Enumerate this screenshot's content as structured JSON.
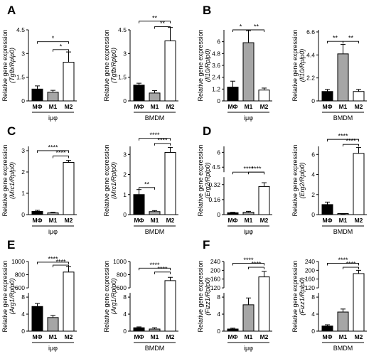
{
  "figure": {
    "width": 550,
    "height": 508
  },
  "colors": {
    "MΦ": "#000000",
    "M1": "#a6a6a6",
    "M2": "#ffffff",
    "stroke": "#000000"
  },
  "chart_data": [
    {
      "panel": "A",
      "type": "bar",
      "categories": [
        "MΦ",
        "M1",
        "M2"
      ],
      "group_label": "iμφ",
      "ylabel_prefix": "Relative gene expression",
      "ylabel_gene": "(Tgfb/Rplp0)",
      "ylim": [
        0,
        4.5
      ],
      "yticks": [
        0,
        1.5,
        3.0,
        4.5
      ],
      "values": [
        0.75,
        0.55,
        2.45
      ],
      "errors": [
        0.2,
        0.12,
        0.65
      ],
      "sig": [
        {
          "from": 0,
          "to": 2,
          "label": "*",
          "y": 3.75
        },
        {
          "from": 1,
          "to": 2,
          "label": "*",
          "y": 3.25
        }
      ]
    },
    {
      "panel": "",
      "type": "bar",
      "categories": [
        "MΦ",
        "M1",
        "M2"
      ],
      "group_label": "BMDM",
      "ylabel_prefix": "Relative gene expression",
      "ylabel_gene": "(Tgfb/Rplp0)",
      "ylim": [
        0,
        4.5
      ],
      "yticks": [
        0,
        1.5,
        3.0,
        4.5
      ],
      "values": [
        1.0,
        0.5,
        3.8
      ],
      "errors": [
        0.12,
        0.15,
        0.85
      ],
      "sig": [
        {
          "from": 0,
          "to": 2,
          "label": "**",
          "y": 5.05
        },
        {
          "from": 1,
          "to": 2,
          "label": "**",
          "y": 4.7
        }
      ]
    },
    {
      "panel": "B",
      "type": "bar",
      "categories": [
        "MΦ",
        "M1",
        "M2"
      ],
      "group_label": "iμφ",
      "ylabel_prefix": "Relative gene expression",
      "ylabel_gene": "(Il10/Rplp0)",
      "ylim": [
        0,
        7.2
      ],
      "yticks": [
        0,
        1.2,
        2.4,
        3.6,
        4.8,
        6.0
      ],
      "values": [
        1.4,
        5.9,
        1.1
      ],
      "errors": [
        0.6,
        1.2,
        0.2
      ],
      "sig": [
        {
          "from": 0,
          "to": 1,
          "label": "*",
          "y": 7.2
        },
        {
          "from": 1,
          "to": 2,
          "label": "**",
          "y": 7.2
        }
      ]
    },
    {
      "panel": "",
      "type": "bar",
      "categories": [
        "MΦ",
        "M1",
        "M2"
      ],
      "group_label": "BMDM",
      "ylabel_prefix": "Relative gene expression",
      "ylabel_gene": "(Il10/Rplp0)",
      "ylim": [
        0,
        6.8
      ],
      "yticks": [
        0,
        2.2,
        4.4,
        6.6
      ],
      "values": [
        0.9,
        4.5,
        0.9
      ],
      "errors": [
        0.2,
        0.9,
        0.2
      ],
      "sig": [
        {
          "from": 0,
          "to": 1,
          "label": "**",
          "y": 5.7
        },
        {
          "from": 1,
          "to": 2,
          "label": "**",
          "y": 5.7
        }
      ]
    },
    {
      "panel": "C",
      "type": "bar",
      "categories": [
        "MΦ",
        "M1",
        "M2"
      ],
      "group_label": "iμφ",
      "ylabel_prefix": "Relative gene expression",
      "ylabel_gene": "(Mrc1/Rplp0)",
      "ylim": [
        0,
        3.2
      ],
      "yticks": [
        0,
        1,
        2,
        3
      ],
      "values": [
        0.15,
        0.08,
        2.45
      ],
      "errors": [
        0.05,
        0.03,
        0.1
      ],
      "sig": [
        {
          "from": 0,
          "to": 2,
          "label": "****",
          "y": 3.0
        },
        {
          "from": 1,
          "to": 2,
          "label": "****",
          "y": 2.75
        }
      ]
    },
    {
      "panel": "",
      "type": "bar",
      "categories": [
        "MΦ",
        "M1",
        "M2"
      ],
      "group_label": "BMDM",
      "ylabel_prefix": "Relative gene expression",
      "ylabel_gene": "(Mrc1/Rplp0)",
      "ylim": [
        0,
        3.4
      ],
      "yticks": [
        0,
        1,
        2,
        3
      ],
      "values": [
        1.0,
        0.15,
        3.1
      ],
      "errors": [
        0.25,
        0.05,
        0.25
      ],
      "sig": [
        {
          "from": 0,
          "to": 2,
          "label": "****",
          "y": 3.8
        },
        {
          "from": 1,
          "to": 2,
          "label": "****",
          "y": 3.55
        },
        {
          "from": 0,
          "to": 1,
          "label": "**",
          "y": 1.35
        }
      ]
    },
    {
      "panel": "D",
      "type": "bar",
      "broken_axis": true,
      "categories": [
        "MΦ",
        "M1",
        "M2"
      ],
      "group_label": "iμφ",
      "ylabel_prefix": "Relative gene expression",
      "ylabel_gene": "(Erg2/Rplp0)",
      "ylim_lower": [
        0,
        0.4
      ],
      "yticks_lower": [
        0,
        0.16,
        0.32
      ],
      "ylim_upper": [
        4.0,
        6.6
      ],
      "yticks_upper": [
        4.5,
        6.0
      ],
      "values": [
        0.02,
        0.025,
        0.3
      ],
      "errors": [
        0.005,
        0.01,
        0.04
      ],
      "sig": [
        {
          "from": 0,
          "to": 2,
          "label": "****",
          "y": 0.48
        },
        {
          "from": 1,
          "to": 2,
          "label": "****",
          "y": 0.42
        }
      ]
    },
    {
      "panel": "",
      "type": "bar",
      "categories": [
        "MΦ",
        "M1",
        "M2"
      ],
      "group_label": "BMDM",
      "ylabel_prefix": "Relative gene expression",
      "ylabel_gene": "(Erg2/Rplp0)",
      "ylim": [
        0,
        6.8
      ],
      "yticks": [
        0,
        2.0,
        4.0,
        6.0
      ],
      "values": [
        1.0,
        0.05,
        6.1
      ],
      "errors": [
        0.25,
        0.02,
        0.6
      ],
      "sig": [
        {
          "from": 0,
          "to": 2,
          "label": "****",
          "y": 7.5
        },
        {
          "from": 1,
          "to": 2,
          "label": "****",
          "y": 7.0
        }
      ]
    },
    {
      "panel": "E",
      "type": "bar",
      "broken_axis": true,
      "categories": [
        "MΦ",
        "M1",
        "M2"
      ],
      "group_label": "iμφ",
      "ylabel_prefix": "Relative gene expression",
      "ylabel_gene": "(Arg1/Rplp0)",
      "ylim_lower": [
        0,
        9
      ],
      "yticks_lower": [
        0,
        4,
        8
      ],
      "ylim_upper": [
        600,
        1000
      ],
      "yticks_upper": [
        600,
        800,
        1000
      ],
      "values": [
        5.8,
        3.2,
        840
      ],
      "errors": [
        0.7,
        0.5,
        80
      ],
      "sig": [
        {
          "from": 0,
          "to": 2,
          "label": "****",
          "y": 990
        },
        {
          "from": 1,
          "to": 2,
          "label": "****",
          "y": 945
        }
      ]
    },
    {
      "panel": "",
      "type": "bar",
      "broken_axis": true,
      "categories": [
        "MΦ",
        "M1",
        "M2"
      ],
      "group_label": "BMDM",
      "ylabel_prefix": "Relative gene expression",
      "ylabel_gene": "(Arg1/Rplp0)",
      "ylim_lower": [
        0,
        9
      ],
      "yticks_lower": [
        0,
        4,
        8
      ],
      "ylim_upper": [
        600,
        1000
      ],
      "yticks_upper": [
        600,
        800,
        1000
      ],
      "values": [
        0.8,
        0.5,
        710
      ],
      "errors": [
        0.2,
        0.3,
        50
      ],
      "sig": [
        {
          "from": 0,
          "to": 2,
          "label": "****",
          "y": 900
        },
        {
          "from": 1,
          "to": 2,
          "label": "****",
          "y": 840
        }
      ]
    },
    {
      "panel": "F",
      "type": "bar",
      "broken_axis": true,
      "categories": [
        "MΦ",
        "M1",
        "M2"
      ],
      "group_label": "iμφ",
      "ylabel_prefix": "Relative gene expression",
      "ylabel_gene": "(Fizz1/Rplp0)",
      "ylim_lower": [
        0,
        9
      ],
      "yticks_lower": [
        0,
        4,
        8
      ],
      "ylim_upper": [
        120,
        240
      ],
      "yticks_upper": [
        120,
        160,
        200,
        240
      ],
      "values": [
        0.5,
        6.2,
        170
      ],
      "errors": [
        0.2,
        1.6,
        25
      ],
      "sig": [
        {
          "from": 0,
          "to": 2,
          "label": "****",
          "y": 232
        },
        {
          "from": 1,
          "to": 2,
          "label": "****",
          "y": 214
        }
      ]
    },
    {
      "panel": "",
      "type": "bar",
      "broken_axis": true,
      "categories": [
        "MΦ",
        "M1",
        "M2"
      ],
      "group_label": "BMDM",
      "ylabel_prefix": "Relative gene expression",
      "ylabel_gene": "(Fizz1/Rplp0)",
      "ylim_lower": [
        0,
        9
      ],
      "yticks_lower": [
        0,
        4,
        8
      ],
      "ylim_upper": [
        120,
        240
      ],
      "yticks_upper": [
        120,
        160,
        200,
        240
      ],
      "values": [
        1.2,
        4.5,
        185
      ],
      "errors": [
        0.3,
        0.7,
        15
      ],
      "sig": [
        {
          "from": 0,
          "to": 2,
          "label": "****",
          "y": 232
        },
        {
          "from": 1,
          "to": 2,
          "label": "****",
          "y": 214
        }
      ]
    }
  ]
}
